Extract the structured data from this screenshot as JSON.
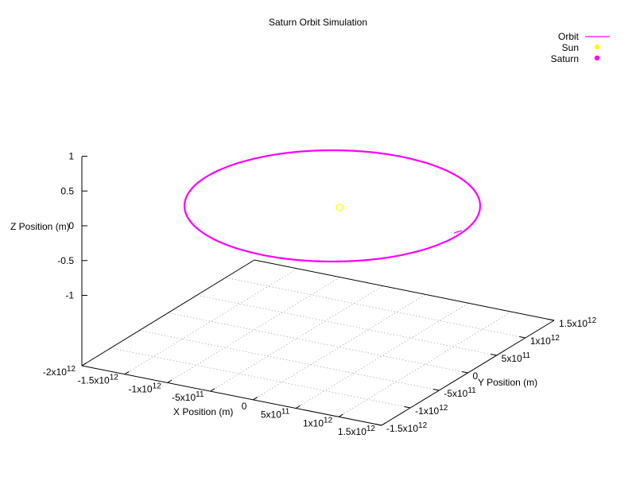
{
  "chart_data": {
    "type": "line",
    "title": "Saturn Orbit Simulation",
    "xlabel": "X Position (m)",
    "ylabel": "Y Position (m)",
    "zlabel": "Z Position (m)",
    "x_ticks": [
      "-2x10",
      "-1.5x10",
      "-1x10",
      "-5x10",
      "0",
      "5x10",
      "1x10",
      "1.5x10"
    ],
    "x_tick_exp": [
      "12",
      "12",
      "12",
      "11",
      "",
      "11",
      "12",
      "12"
    ],
    "y_ticks": [
      "-1.5x10",
      "-1x10",
      "-5x10",
      "0",
      "5x10",
      "1x10",
      "1.5x10"
    ],
    "y_tick_exp": [
      "12",
      "12",
      "11",
      "",
      "11",
      "12",
      "12"
    ],
    "z_ticks": [
      "1",
      "0.5",
      "0",
      "-0.5",
      "-1"
    ],
    "grid": true,
    "legend_position": "top-right",
    "series": [
      {
        "name": "Orbit",
        "kind": "line",
        "color": "#ff00ff",
        "center": [
          0,
          0,
          0
        ],
        "radius": 1430000000000.0
      },
      {
        "name": "Sun",
        "kind": "point",
        "color": "#ffff00",
        "x": 0,
        "y": 0,
        "z": 0
      },
      {
        "name": "Saturn",
        "kind": "point",
        "color": "#ff00ff"
      }
    ]
  }
}
